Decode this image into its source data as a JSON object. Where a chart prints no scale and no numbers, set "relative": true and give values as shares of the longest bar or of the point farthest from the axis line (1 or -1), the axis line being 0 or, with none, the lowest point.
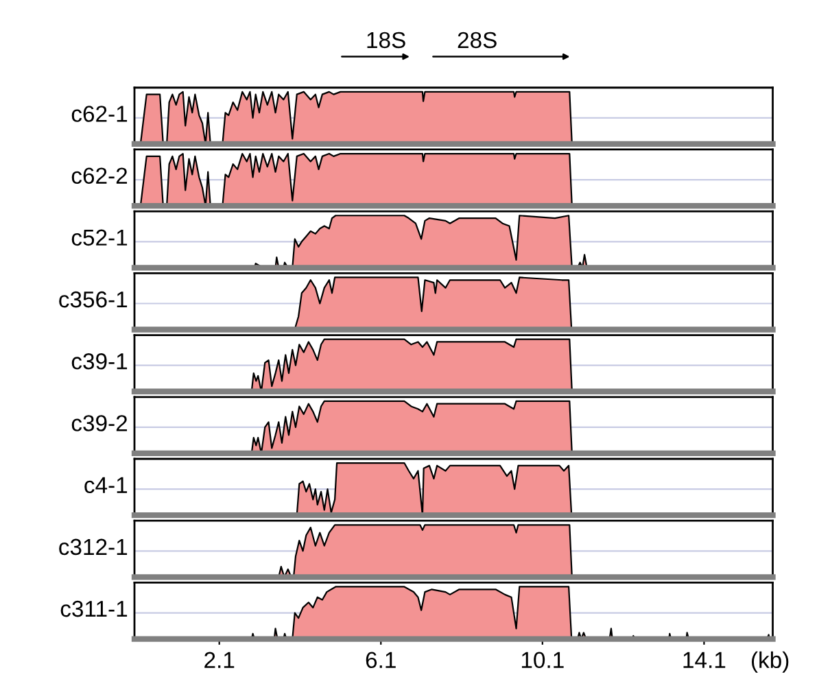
{
  "chart_data": [
    {
      "type": "area",
      "relative": true,
      "ylabel": "c62-1",
      "xlim": [
        0,
        15.8
      ],
      "tick_labels": false,
      "annotations": [
        "18S",
        "28S"
      ],
      "ref_lines": [
        {
          "axis": "y",
          "value": 0.5,
          "color": "#c8cbe4"
        }
      ],
      "series": [
        {
          "color": "#f39393",
          "x": [
            0.15,
            0.3,
            0.63,
            0.71,
            0.8,
            0.86,
            0.94,
            1.03,
            1.11,
            1.2,
            1.26,
            1.35,
            1.43,
            1.5,
            1.6,
            1.68,
            1.76,
            1.82,
            1.88,
            1.96,
            2.18,
            2.25,
            2.33,
            2.44,
            2.55,
            2.67,
            2.78,
            2.86,
            2.93,
            3.0,
            3.09,
            3.18,
            3.29,
            3.4,
            3.49,
            3.57,
            3.69,
            3.8,
            3.91,
            4.02,
            4.19,
            4.36,
            4.48,
            4.56,
            4.65,
            4.82,
            4.93,
            5.1,
            7.13,
            7.15,
            7.19,
            9.39,
            9.41,
            9.45,
            10.77,
            10.83,
            15.75
          ],
          "values": [
            0,
            0.95,
            0.95,
            0,
            0,
            0.8,
            0.95,
            0.75,
            0.95,
            1,
            0.35,
            0.9,
            0.6,
            0.95,
            0.55,
            0.4,
            0,
            0.6,
            0,
            0,
            0,
            0.6,
            0.55,
            0.8,
            0.65,
            1,
            0.85,
            1,
            0.5,
            0.95,
            0.6,
            1,
            0.75,
            1,
            0.6,
            0.95,
            0.85,
            1,
            0.1,
            0.95,
            1,
            0.85,
            0.95,
            0.7,
            0.95,
            1,
            0.95,
            1,
            1,
            0.82,
            1,
            1,
            0.9,
            1,
            1,
            0,
            0
          ]
        }
      ]
    },
    {
      "type": "area",
      "relative": true,
      "ylabel": "c62-2",
      "xlim": [
        0,
        15.8
      ],
      "tick_labels": false,
      "ref_lines": [
        {
          "axis": "y",
          "value": 0.5,
          "color": "#c8cbe4"
        }
      ],
      "series": [
        {
          "color": "#f39393",
          "x": [
            0.15,
            0.3,
            0.63,
            0.71,
            0.8,
            0.86,
            0.94,
            1.03,
            1.11,
            1.2,
            1.26,
            1.35,
            1.43,
            1.5,
            1.6,
            1.68,
            1.76,
            1.82,
            1.88,
            1.96,
            2.18,
            2.25,
            2.33,
            2.44,
            2.55,
            2.67,
            2.78,
            2.86,
            2.93,
            3.0,
            3.09,
            3.18,
            3.29,
            3.4,
            3.49,
            3.57,
            3.69,
            3.8,
            3.91,
            4.02,
            4.19,
            4.36,
            4.48,
            4.56,
            4.65,
            4.82,
            4.93,
            5.1,
            7.13,
            7.15,
            7.19,
            9.39,
            9.41,
            9.45,
            10.77,
            10.83,
            15.75
          ],
          "values": [
            0,
            0.95,
            0.95,
            0,
            0,
            0.8,
            0.95,
            0.7,
            0.95,
            1,
            0.3,
            0.9,
            0.6,
            0.95,
            0.55,
            0.35,
            0,
            0.65,
            0,
            0,
            0,
            0.6,
            0.55,
            0.8,
            0.7,
            1,
            0.85,
            1,
            0.55,
            0.95,
            0.65,
            1,
            0.75,
            1,
            0.65,
            0.95,
            0.85,
            1,
            0.1,
            0.95,
            1,
            0.85,
            0.95,
            0.7,
            0.95,
            1,
            0.95,
            1,
            1,
            0.85,
            1,
            1,
            0.9,
            1,
            1,
            0,
            0
          ]
        }
      ]
    },
    {
      "type": "area",
      "relative": true,
      "ylabel": "c52-1",
      "xlim": [
        0,
        15.8
      ],
      "tick_labels": false,
      "ref_lines": [
        {
          "axis": "y",
          "value": 0.5,
          "color": "#c8cbe4"
        }
      ],
      "series": [
        {
          "color": "#f39393",
          "x": [
            2.97,
            3.0,
            3.18,
            3.49,
            3.52,
            3.57,
            3.69,
            3.72,
            3.8,
            3.91,
            3.97,
            4.06,
            4.14,
            4.25,
            4.36,
            4.48,
            4.59,
            4.7,
            4.82,
            4.89,
            4.98,
            6.68,
            6.79,
            6.96,
            7.1,
            7.19,
            7.3,
            7.7,
            7.81,
            8.04,
            8.94,
            9.11,
            9.28,
            9.45,
            9.53,
            10.41,
            10.75,
            10.83,
            10.97,
            11.03,
            11.09,
            11.14,
            11.2,
            15.75
          ],
          "values": [
            0,
            0.08,
            0,
            0,
            0.2,
            0,
            0,
            0.1,
            0,
            0,
            0.55,
            0.4,
            0.5,
            0.6,
            0.7,
            0.65,
            0.75,
            0.8,
            0.75,
            0.95,
            1,
            1,
            0.95,
            0.85,
            0.55,
            0.9,
            0.95,
            0.9,
            0.85,
            0.95,
            0.95,
            0.85,
            0.8,
            0.15,
            1,
            0.95,
            1,
            0,
            0,
            0.1,
            0,
            0.25,
            0,
            0
          ]
        }
      ]
    },
    {
      "type": "area",
      "relative": true,
      "ylabel": "c356-1",
      "xlim": [
        0,
        15.8
      ],
      "tick_labels": false,
      "ref_lines": [
        {
          "axis": "y",
          "value": 0.5,
          "color": "#c8cbe4"
        }
      ],
      "series": [
        {
          "color": "#f39393",
          "x": [
            3.57,
            3.97,
            4.06,
            4.14,
            4.25,
            4.36,
            4.48,
            4.59,
            4.7,
            4.82,
            4.89,
            4.96,
            6.68,
            7.02,
            7.11,
            7.19,
            7.41,
            7.45,
            7.49,
            7.7,
            7.81,
            9.05,
            9.17,
            9.33,
            9.45,
            9.53,
            10.58,
            10.75,
            10.82,
            15.75
          ],
          "values": [
            0.01,
            0.01,
            0.25,
            0.7,
            0.8,
            0.95,
            0.8,
            0.5,
            0.8,
            0.95,
            0.7,
            1,
            1,
            1,
            0.35,
            0.95,
            0.9,
            0.7,
            0.95,
            0.8,
            0.95,
            0.95,
            0.8,
            0.9,
            0.7,
            1,
            0.95,
            0.95,
            0,
            0
          ]
        }
      ]
    },
    {
      "type": "area",
      "relative": true,
      "ylabel": "c39-1",
      "xlim": [
        0,
        15.8
      ],
      "tick_labels": false,
      "ref_lines": [
        {
          "axis": "y",
          "value": 0.5,
          "color": "#c8cbe4"
        }
      ],
      "series": [
        {
          "color": "#f39393",
          "x": [
            2.9,
            2.95,
            3.01,
            3.06,
            3.14,
            3.23,
            3.32,
            3.4,
            3.49,
            3.57,
            3.65,
            3.74,
            3.82,
            3.91,
            3.99,
            4.08,
            4.19,
            4.31,
            4.42,
            4.53,
            4.62,
            4.7,
            6.68,
            6.85,
            7.02,
            7.13,
            7.24,
            7.41,
            7.49,
            7.87,
            8.94,
            9.17,
            9.39,
            9.45,
            10.77,
            10.83,
            15.75
          ],
          "values": [
            0,
            0.35,
            0.2,
            0.3,
            0,
            0.55,
            0.6,
            0.1,
            0.35,
            0.6,
            0.2,
            0.7,
            0.35,
            0.8,
            0.5,
            0.9,
            0.75,
            0.95,
            0.8,
            0.6,
            0.9,
            1,
            1,
            0.9,
            0.95,
            0.85,
            0.95,
            0.7,
            0.95,
            0.95,
            0.95,
            0.95,
            0.85,
            1,
            1,
            0,
            0
          ]
        }
      ]
    },
    {
      "type": "area",
      "relative": true,
      "ylabel": "c39-2",
      "xlim": [
        0,
        15.8
      ],
      "tick_labels": false,
      "ref_lines": [
        {
          "axis": "y",
          "value": 0.5,
          "color": "#c8cbe4"
        }
      ],
      "series": [
        {
          "color": "#f39393",
          "x": [
            2.9,
            2.95,
            3.01,
            3.06,
            3.14,
            3.23,
            3.32,
            3.4,
            3.49,
            3.57,
            3.65,
            3.74,
            3.82,
            3.91,
            3.99,
            4.08,
            4.19,
            4.31,
            4.42,
            4.53,
            4.62,
            4.7,
            6.68,
            6.85,
            7.02,
            7.13,
            7.24,
            7.41,
            7.49,
            7.87,
            8.94,
            9.17,
            9.39,
            9.45,
            10.77,
            10.83,
            15.75
          ],
          "values": [
            0,
            0.3,
            0.15,
            0.3,
            0,
            0.5,
            0.6,
            0.1,
            0.35,
            0.6,
            0.2,
            0.7,
            0.35,
            0.8,
            0.5,
            0.9,
            0.75,
            0.95,
            0.8,
            0.6,
            0.9,
            1,
            1,
            0.9,
            0.85,
            0.8,
            0.95,
            0.7,
            0.95,
            0.95,
            0.95,
            0.95,
            0.85,
            1,
            1,
            0,
            0
          ]
        }
      ]
    },
    {
      "type": "area",
      "relative": true,
      "ylabel": "c4-1",
      "xlim": [
        0,
        15.8
      ],
      "tick_labels": false,
      "ref_lines": [
        {
          "axis": "y",
          "value": 0.5,
          "color": "#c8cbe4"
        }
      ],
      "series": [
        {
          "color": "#f39393",
          "x": [
            4.02,
            4.08,
            4.17,
            4.25,
            4.33,
            4.42,
            4.48,
            4.53,
            4.62,
            4.7,
            4.78,
            4.87,
            4.96,
            5.01,
            6.68,
            6.79,
            6.91,
            7.02,
            7.13,
            7.16,
            7.3,
            7.41,
            7.49,
            7.7,
            7.81,
            9.05,
            9.22,
            9.33,
            9.41,
            9.5,
            10.52,
            10.63,
            10.75,
            10.82,
            15.75
          ],
          "values": [
            0,
            0.6,
            0.65,
            0.45,
            0.6,
            0.3,
            0.5,
            0.2,
            0.45,
            0.1,
            0.5,
            0.05,
            0.3,
            1,
            1,
            0.85,
            0.7,
            0.85,
            0,
            0.9,
            0.95,
            0.7,
            0.95,
            0.85,
            0.95,
            0.95,
            0.75,
            0.85,
            0.5,
            0.95,
            0.95,
            0.85,
            0.95,
            0,
            0
          ]
        }
      ]
    },
    {
      "type": "area",
      "relative": true,
      "ylabel": "c312-1",
      "xlim": [
        0,
        15.8
      ],
      "tick_labels": false,
      "ref_lines": [
        {
          "axis": "y",
          "value": 0.5,
          "color": "#c8cbe4"
        }
      ],
      "series": [
        {
          "color": "#f39393",
          "x": [
            3.57,
            3.63,
            3.71,
            3.8,
            3.88,
            3.94,
            3.99,
            4.08,
            4.17,
            4.25,
            4.36,
            4.48,
            4.59,
            4.7,
            4.82,
            4.96,
            7.07,
            7.13,
            7.19,
            9.39,
            9.45,
            9.5,
            10.77,
            10.83,
            15.75
          ],
          "values": [
            0,
            0.2,
            0,
            0.15,
            0,
            0,
            0.4,
            0.7,
            0.5,
            0.8,
            0.95,
            0.6,
            0.85,
            0.6,
            0.85,
            1,
            1,
            0.9,
            1,
            1,
            0.85,
            1,
            1,
            0,
            0
          ]
        }
      ]
    },
    {
      "type": "area",
      "relative": true,
      "ylabel": "c311-1",
      "xlabel": "(kb)",
      "xlim": [
        0,
        15.8
      ],
      "xticks": [
        2.1,
        6.1,
        10.1,
        14.1
      ],
      "tick_labels": "x",
      "ref_lines": [
        {
          "axis": "y",
          "value": 0.5,
          "color": "#c8cbe4"
        }
      ],
      "series": [
        {
          "color": "#f39393",
          "x": [
            2.9,
            2.93,
            2.97,
            3.46,
            3.49,
            3.54,
            3.69,
            3.72,
            3.76,
            3.91,
            3.97,
            4.06,
            4.17,
            4.31,
            4.42,
            4.53,
            4.65,
            4.76,
            4.87,
            4.98,
            6.68,
            6.91,
            7.02,
            7.1,
            7.19,
            7.36,
            7.7,
            7.81,
            8.04,
            8.94,
            9.17,
            9.33,
            9.45,
            9.53,
            10.75,
            10.82,
            10.97,
            11.01,
            11.06,
            11.12,
            11.18,
            11.76,
            11.8,
            11.83,
            12.33,
            12.35,
            12.39,
            13.23,
            13.25,
            13.28,
            13.66,
            13.68,
            13.72,
            15.66,
            15.7,
            15.72
          ],
          "values": [
            0,
            0.1,
            0,
            0,
            0.2,
            0,
            0,
            0.1,
            0,
            0,
            0.5,
            0.4,
            0.6,
            0.7,
            0.6,
            0.8,
            0.75,
            0.9,
            0.95,
            1,
            1,
            0.9,
            0.8,
            0.55,
            0.9,
            0.95,
            0.9,
            0.85,
            0.95,
            0.95,
            0.85,
            0.8,
            0.2,
            1,
            1,
            0,
            0,
            0.12,
            0,
            0.12,
            0,
            0,
            0.2,
            0,
            0,
            0.06,
            0,
            0,
            0.1,
            0,
            0,
            0.12,
            0,
            0,
            0.08,
            0
          ]
        }
      ]
    }
  ]
}
